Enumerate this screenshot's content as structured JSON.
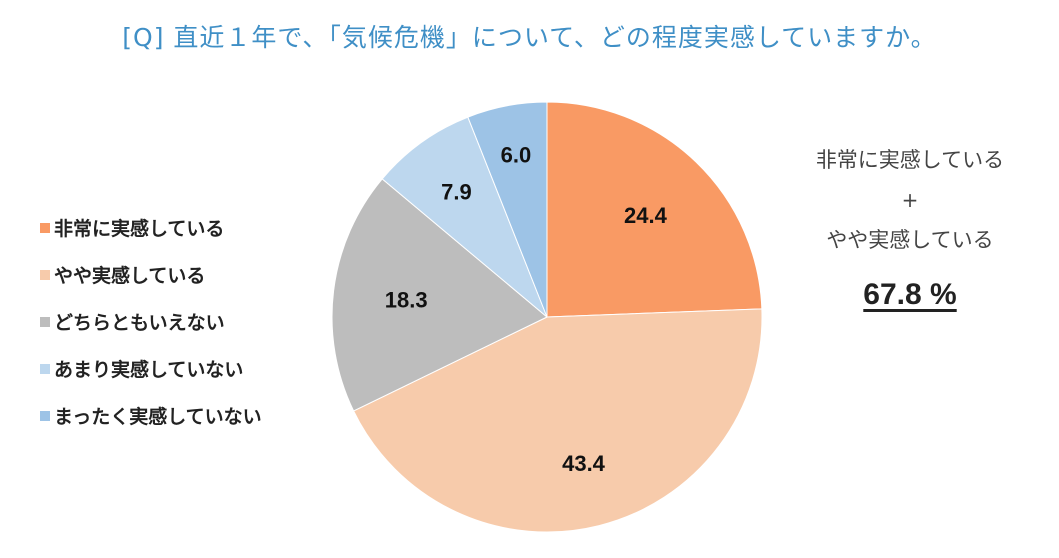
{
  "title": "[Q] 直近１年で、「気候危機」について、どの程度実感していますか。",
  "summary": {
    "line1": "非常に実感している",
    "plus": "+",
    "line2": "やや実感している",
    "total": "67.8 %"
  },
  "colors": {
    "title": "#3f8fc6",
    "slices": [
      "#f99a64",
      "#f7cbab",
      "#bdbdbd",
      "#bdd7ee",
      "#9dc3e6"
    ]
  },
  "chart_data": {
    "type": "pie",
    "title": "[Q] 直近１年で、「気候危機」について、どの程度実感していますか。",
    "start_angle": "12 o'clock, clockwise",
    "legend_position": "left",
    "slices": [
      {
        "label": "非常に実感している",
        "value": 24.4
      },
      {
        "label": "やや実感している",
        "value": 43.4
      },
      {
        "label": "どちらともいえない",
        "value": 18.3
      },
      {
        "label": "あまり実感していない",
        "value": 7.9
      },
      {
        "label": "まったく実感していない",
        "value": 6.0
      }
    ]
  }
}
